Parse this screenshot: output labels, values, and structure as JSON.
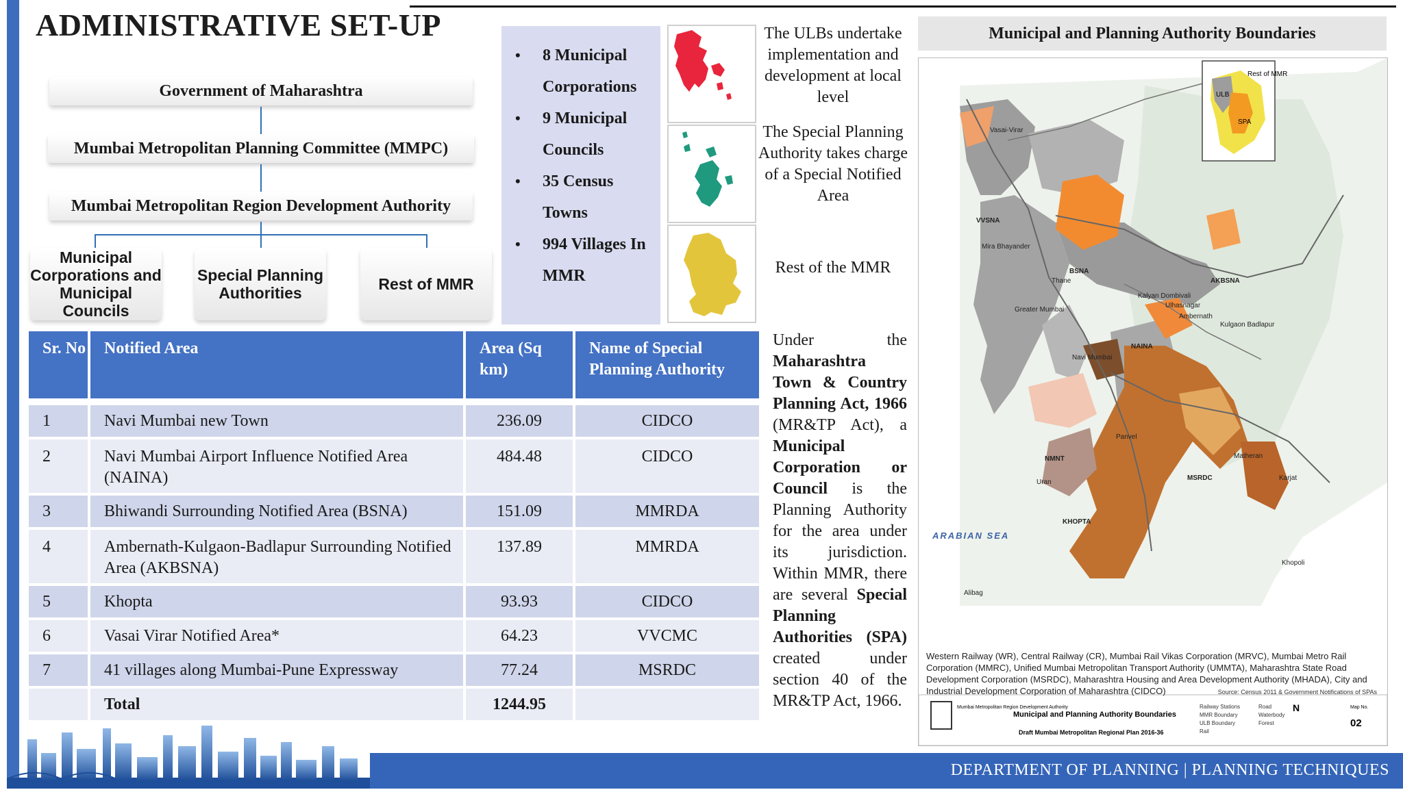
{
  "title": "ADMINISTRATIVE SET-UP",
  "hierarchy": {
    "level1": "Government of Maharashtra",
    "level2": "Mumbai Metropolitan Planning Committee (MMPC)",
    "level3": "Mumbai Metropolitan Region Development Authority",
    "branches": [
      "Municipal Corporations and Municipal Councils",
      "Special Planning Authorities",
      "Rest of MMR"
    ]
  },
  "stats": {
    "items": [
      "8 Municipal Corporations",
      "9 Municipal Councils",
      "35 Census Towns",
      "994 Villages In MMR"
    ]
  },
  "thumb_colors": {
    "ulb": "#e8253c",
    "spa": "#1f9a7e",
    "rest": "#e3c53c"
  },
  "descriptions": {
    "ulb": "The ULBs undertake implementation and development at local level",
    "spa": "The Special Planning Authority takes charge of a Special Notified Area",
    "rest": "Rest of the MMR"
  },
  "table": {
    "headers": [
      "Sr. No",
      "Notified Area",
      "Area (Sq km)",
      "Name of Special Planning Authority"
    ],
    "rows": [
      {
        "sr": "1",
        "area_name": "Navi Mumbai new Town",
        "area": "236.09",
        "authority": "CIDCO"
      },
      {
        "sr": "2",
        "area_name": "Navi Mumbai Airport Influence Notified Area (NAINA)",
        "area": "484.48",
        "authority": "CIDCO"
      },
      {
        "sr": "3",
        "area_name": "Bhiwandi Surrounding Notified Area (BSNA)",
        "area": "151.09",
        "authority": "MMRDA"
      },
      {
        "sr": "4",
        "area_name": "Ambernath-Kulgaon-Badlapur Surrounding Notified Area (AKBSNA)",
        "area": "137.89",
        "authority": "MMRDA"
      },
      {
        "sr": "5",
        "area_name": "Khopta",
        "area": "93.93",
        "authority": "CIDCO"
      },
      {
        "sr": "6",
        "area_name": "Vasai Virar Notified Area*",
        "area": "64.23",
        "authority": "VVCMC"
      },
      {
        "sr": "7",
        "area_name": "41 villages along Mumbai-Pune Expressway",
        "area": "77.24",
        "authority": "MSRDC"
      }
    ],
    "total_label": "Total",
    "total_value": "1244.95"
  },
  "spa_paragraph": {
    "p1": "Under the ",
    "b1": "Maharashtra Town & Country Planning Act, 1966",
    "p2": " (MR&TP Act), a ",
    "b2": "Municipal Corporation or Council",
    "p3": " is the Planning Authority for the area under its jurisdiction. Within MMR, there are several ",
    "b3": "Special Planning Authorities (SPA)",
    "p4": " created under section 40 of the MR&TP Act, 1966."
  },
  "map": {
    "title": "Municipal and Planning Authority Boundaries",
    "inset_labels": [
      "Rest of MMR",
      "ULB",
      "SPA"
    ],
    "place_labels": [
      "Vasai-Virar",
      "VVSNA",
      "Mira Bhayander",
      "BSNA",
      "Thane",
      "AKBSNA",
      "Kalyan Dombivali",
      "Ulhasnagar",
      "Ambernath",
      "Kulgaon Badlapur",
      "Greater Mumbai",
      "Navi Mumbai",
      "NAINA",
      "Panvel",
      "NMNT",
      "Uran",
      "MSRDC",
      "Matheran",
      "Karjat",
      "KHOPTA",
      "Khopoli",
      "Alibag"
    ],
    "sea_label": "ARABIAN SEA",
    "caption": "Western Railway (WR), Central Railway (CR), Mumbai Rail Vikas Corporation (MRVC), Mumbai Metro Rail Corporation (MMRC), Unified Mumbai Metropolitan Transport Authority (UMMTA), Maharashtra State Road Development Corporation (MSRDC), Maharashtra Housing and Area Development Authority (MHADA), City and Industrial Development Corporation of Maharashtra (CIDCO)",
    "source": "Source: Census 2011 & Government Notifications of SPAs",
    "legend_org": "Mumbai Metropolitan Region Development Authority",
    "legend_title": "Municipal and Planning Authority Boundaries",
    "legend_sub": "Draft Mumbai Metropolitan Regional Plan 2016-36",
    "legend_items": [
      "Railway Stations",
      "MMR Boundary",
      "ULB Boundary",
      "Rail",
      "Road",
      "Waterbody",
      "Forest"
    ],
    "map_no_label": "Map No.",
    "map_no": "02"
  },
  "footer": "DEPARTMENT OF PLANNING | PLANNING TECHNIQUES"
}
